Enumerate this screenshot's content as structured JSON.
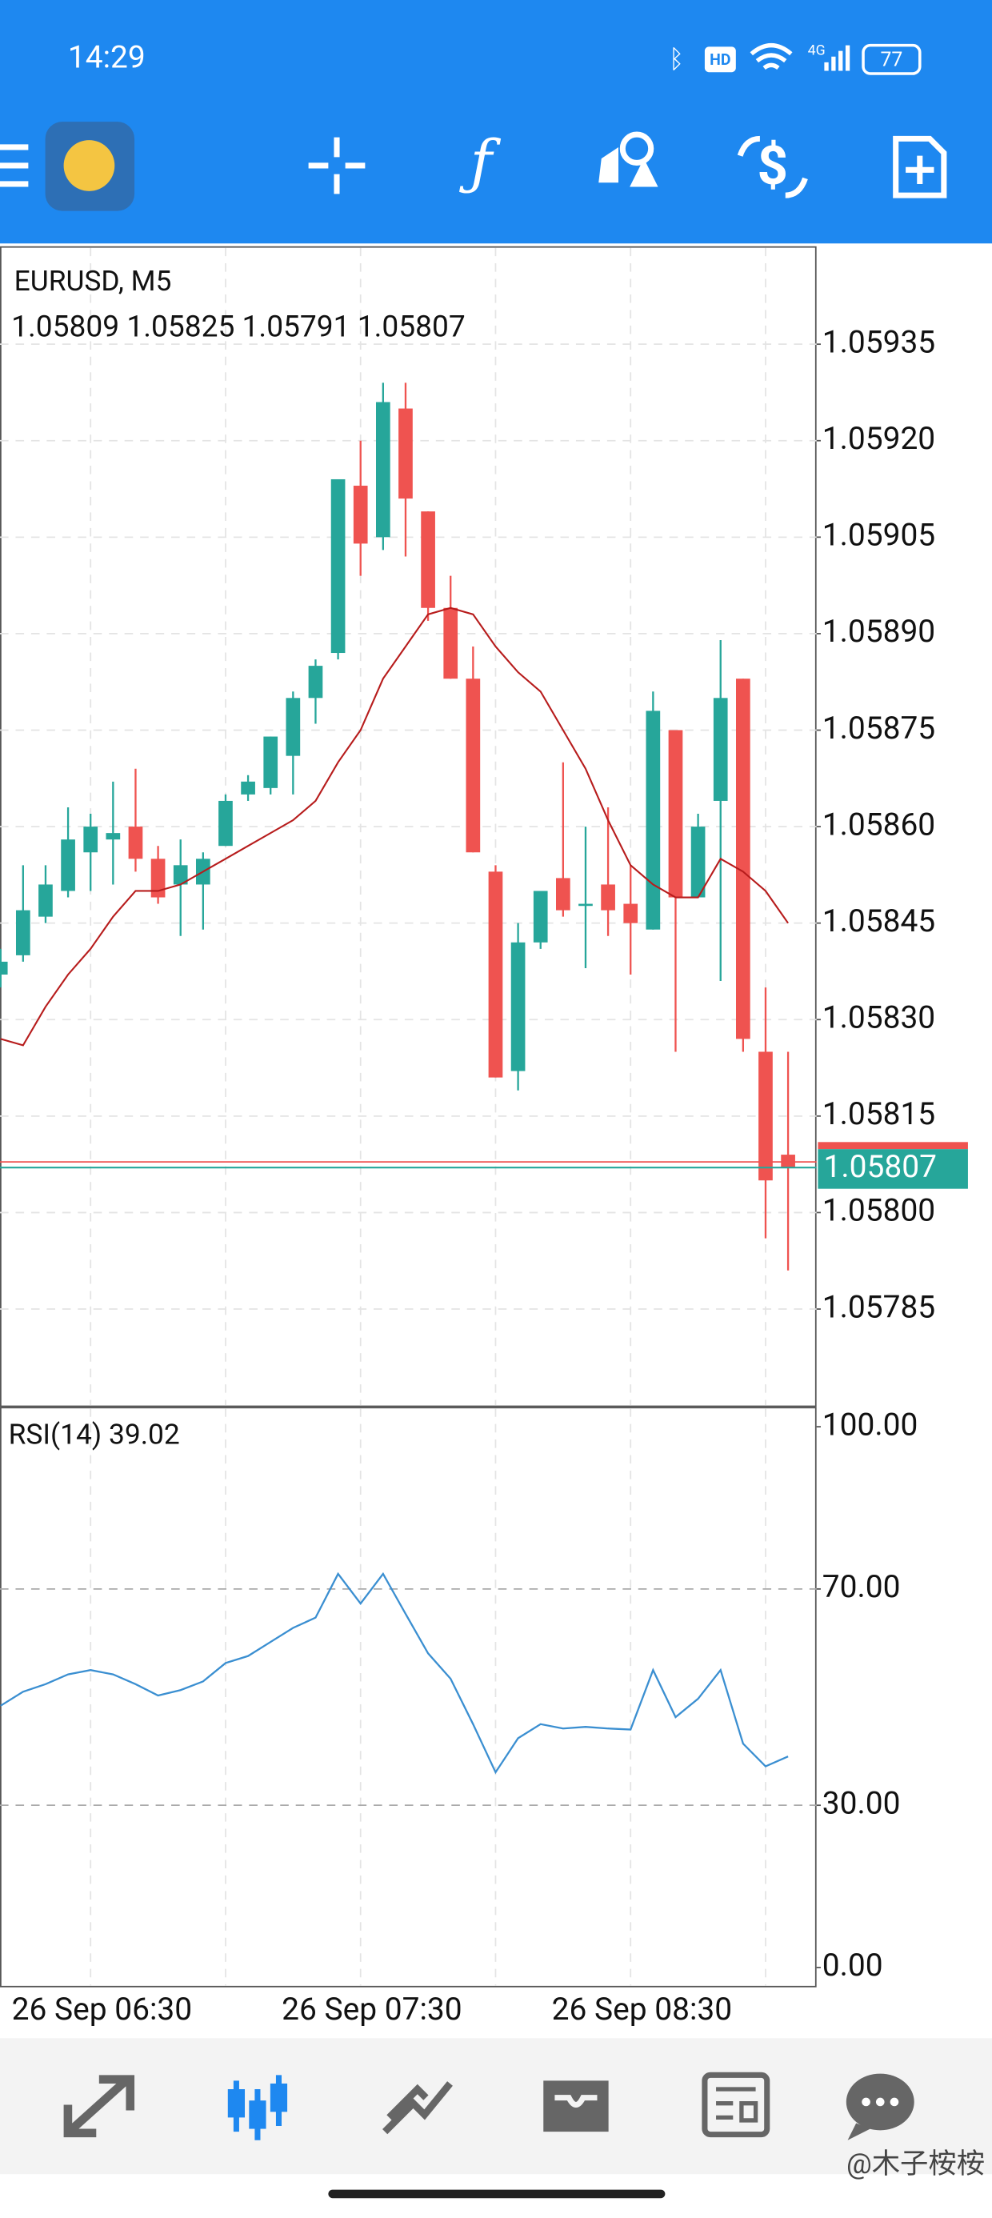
{
  "status_bar": {
    "time": "14:29",
    "hd": "HD",
    "network": "4G",
    "battery": "77"
  },
  "chart_data": [
    {
      "type": "candlestick",
      "title": "EURUSD, M5",
      "categories": [
        null,
        null,
        null,
        null,
        "26 Sep 06:30",
        null,
        null,
        null,
        null,
        null,
        null,
        null,
        null,
        null,
        null,
        null,
        "26 Sep 07:30",
        null,
        null,
        null,
        null,
        null,
        null,
        null,
        null,
        null,
        null,
        null,
        "26 Sep 08:30",
        null,
        null,
        null,
        null,
        null,
        null,
        null
      ],
      "open": [
        1.05837,
        1.0584,
        1.05846,
        1.0585,
        1.05856,
        1.05858,
        1.0586,
        1.05855,
        1.05851,
        1.05851,
        1.05857,
        1.05865,
        1.05866,
        1.05871,
        1.0588,
        1.05887,
        1.05913,
        1.05905,
        1.05925,
        1.05909,
        1.05894,
        1.05883,
        1.05853,
        1.05822,
        1.05842,
        1.05852,
        1.05848,
        1.05851,
        1.05848,
        1.05844,
        1.05875,
        1.05849,
        1.05864,
        1.05883,
        1.05825,
        1.05809
      ],
      "high": [
        1.05841,
        1.05854,
        1.05854,
        1.05863,
        1.05862,
        1.05867,
        1.05869,
        1.05857,
        1.05858,
        1.05856,
        1.05865,
        1.05868,
        1.05874,
        1.05881,
        1.05886,
        1.05914,
        1.0592,
        1.05929,
        1.05929,
        1.05909,
        1.05899,
        1.05888,
        1.05854,
        1.05845,
        1.0585,
        1.0587,
        1.0586,
        1.05863,
        1.05854,
        1.05881,
        1.05875,
        1.05862,
        1.05889,
        1.05883,
        1.05835,
        1.05825
      ],
      "low": [
        1.05835,
        1.05839,
        1.05845,
        1.05849,
        1.0585,
        1.05851,
        1.05853,
        1.05848,
        1.05843,
        1.05844,
        1.05857,
        1.05864,
        1.05865,
        1.05865,
        1.05876,
        1.05886,
        1.05899,
        1.05903,
        1.05902,
        1.05892,
        1.05883,
        1.05856,
        1.05821,
        1.05819,
        1.05841,
        1.05846,
        1.05838,
        1.05843,
        1.05837,
        1.05844,
        1.05825,
        1.05849,
        1.05836,
        1.05825,
        1.05796,
        1.05791
      ],
      "close": [
        1.05839,
        1.05847,
        1.05851,
        1.05858,
        1.0586,
        1.05859,
        1.05855,
        1.05849,
        1.05854,
        1.05855,
        1.05864,
        1.05867,
        1.05874,
        1.0588,
        1.05885,
        1.05914,
        1.05904,
        1.05926,
        1.05911,
        1.05894,
        1.05883,
        1.05856,
        1.05821,
        1.05842,
        1.0585,
        1.05847,
        1.05848,
        1.05847,
        1.05845,
        1.05878,
        1.05849,
        1.0586,
        1.0588,
        1.05827,
        1.05805,
        1.05807
      ],
      "up_color": "#26a69a",
      "down_color": "#ef5350",
      "ma": {
        "color": "#b71c1c",
        "values": [
          1.05827,
          1.05826,
          1.05832,
          1.05837,
          1.05841,
          1.05846,
          1.0585,
          1.0585,
          1.05851,
          1.05853,
          1.05855,
          1.05857,
          1.05859,
          1.05861,
          1.05864,
          1.0587,
          1.05875,
          1.05883,
          1.05888,
          1.05893,
          1.05894,
          1.05893,
          1.05888,
          1.05884,
          1.05881,
          1.05875,
          1.05869,
          1.05861,
          1.05854,
          1.05851,
          1.05849,
          1.05849,
          1.05855,
          1.05853,
          1.0585,
          1.05845
        ]
      },
      "price_line": 1.05807,
      "price_line_color": "#26a69a",
      "ylim": [
        1.0577,
        1.0595
      ],
      "yticks": [
        1.05935,
        {
          "value": 1.0592,
          "label": "1.05920"
        },
        1.05905,
        {
          "value": 1.0589,
          "label": "1.05890"
        },
        1.05875,
        {
          "value": 1.0586,
          "label": "1.05860"
        },
        1.05845,
        {
          "value": 1.0583,
          "label": "1.05830"
        },
        1.05815,
        {
          "value": 1.058,
          "label": "1.05800"
        },
        1.05785
      ],
      "grid": true
    },
    {
      "type": "line",
      "title": "RSI(14)",
      "current": 39.02,
      "color": "#3b8fd1",
      "values": [
        48.4,
        51,
        52.4,
        54.2,
        55,
        54.2,
        52.4,
        50.3,
        51.3,
        52.9,
        56.3,
        57.6,
        60.2,
        62.8,
        64.7,
        72.8,
        67.3,
        72.8,
        65.4,
        58.1,
        53.4,
        45,
        36.1,
        42.4,
        45,
        44.2,
        44.5,
        44.2,
        44,
        55,
        46.3,
        49.7,
        55,
        41.4,
        37.2,
        39.02
      ],
      "ylim": [
        -3.4,
        103.4
      ],
      "yticks": [
        {
          "value": 100,
          "label": "100.00"
        },
        {
          "value": 70,
          "label": "70.00"
        },
        {
          "value": 30,
          "label": "30.00"
        },
        {
          "value": 0,
          "label": "0.00"
        }
      ],
      "levels": [
        30,
        70
      ]
    }
  ],
  "watermark": "@木子桉桉"
}
